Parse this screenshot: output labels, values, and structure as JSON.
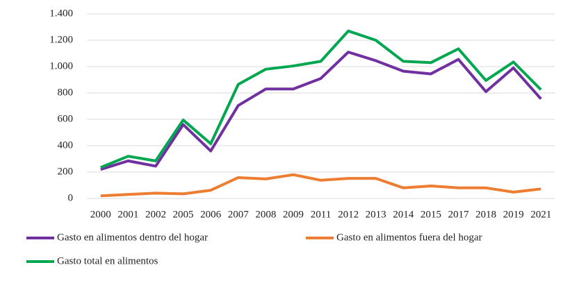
{
  "chart_data": {
    "type": "line",
    "categories": [
      "2000",
      "2001",
      "2002",
      "2005",
      "2006",
      "2007",
      "2008",
      "2009",
      "2011",
      "2012",
      "2013",
      "2014",
      "2015",
      "2017",
      "2018",
      "2019",
      "2021"
    ],
    "series": [
      {
        "name": "Gasto en alimentos dentro del hogar",
        "color": "#7030a0",
        "values": [
          220,
          285,
          245,
          560,
          360,
          705,
          830,
          830,
          910,
          1110,
          1045,
          965,
          945,
          1055,
          810,
          990,
          755
        ]
      },
      {
        "name": "Gasto en alimentos fuera del hogar",
        "color": "#ed7d31",
        "values": [
          20,
          30,
          40,
          35,
          62,
          158,
          148,
          180,
          138,
          152,
          152,
          80,
          95,
          80,
          80,
          48,
          72
        ]
      },
      {
        "name": "Gasto total en alimentos",
        "color": "#00a650",
        "values": [
          235,
          320,
          285,
          595,
          415,
          865,
          980,
          1005,
          1040,
          1270,
          1200,
          1040,
          1030,
          1135,
          895,
          1035,
          825
        ]
      }
    ],
    "ylim": [
      0,
      1400
    ],
    "yticks": [
      0,
      200,
      400,
      600,
      800,
      {
        "value": 1000,
        "label": "1.000"
      },
      {
        "value": 1200,
        "label": "1.200"
      },
      {
        "value": 1400,
        "label": "1.400"
      }
    ],
    "grid": true,
    "legend": "bottom"
  }
}
